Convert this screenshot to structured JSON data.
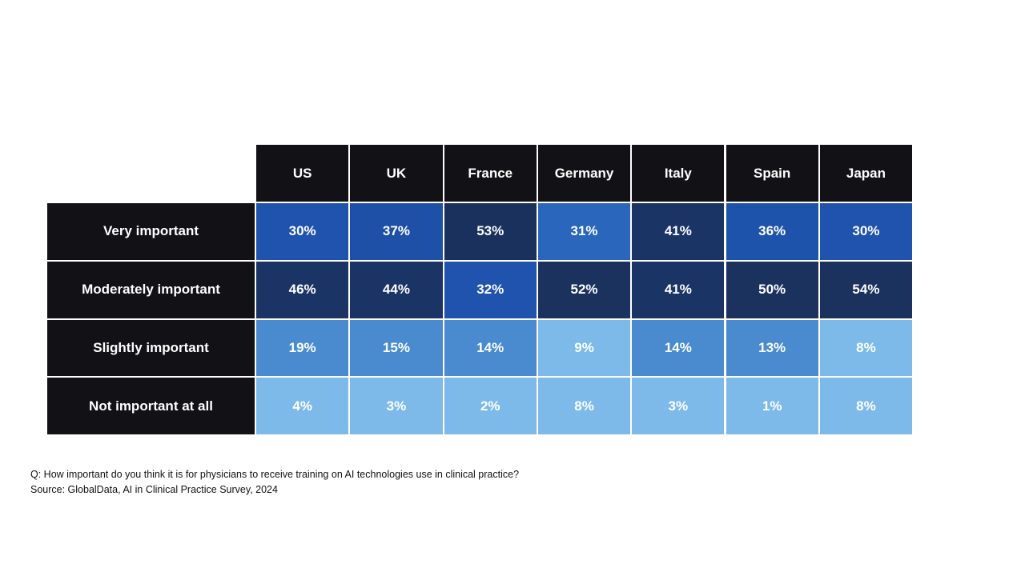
{
  "chart_data": {
    "type": "table",
    "columns": [
      "US",
      "UK",
      "France",
      "Germany",
      "Italy",
      "Spain",
      "Japan"
    ],
    "rows": [
      {
        "label": "Very important",
        "values": [
          "30%",
          "37%",
          "53%",
          "31%",
          "41%",
          "36%",
          "30%"
        ],
        "colors": [
          "#1f53ad",
          "#1e50a8",
          "#1b315d",
          "#2a66bb",
          "#1a3466",
          "#1e53ac",
          "#1f53ad"
        ]
      },
      {
        "label": "Moderately important",
        "values": [
          "46%",
          "44%",
          "32%",
          "52%",
          "41%",
          "50%",
          "54%"
        ],
        "colors": [
          "#1b3466",
          "#1b3466",
          "#1f53ad",
          "#1b315e",
          "#1b3466",
          "#1b315e",
          "#1b315e"
        ]
      },
      {
        "label": "Slightly important",
        "values": [
          "19%",
          "15%",
          "14%",
          "9%",
          "14%",
          "13%",
          "8%"
        ],
        "colors": [
          "#4a8bcf",
          "#4a8bcf",
          "#4a8bcf",
          "#7dbaea",
          "#4a8bcf",
          "#4a8bcf",
          "#7dbaea"
        ]
      },
      {
        "label": "Not important at all",
        "values": [
          "4%",
          "3%",
          "2%",
          "8%",
          "3%",
          "1%",
          "8%"
        ],
        "colors": [
          "#7dbaea",
          "#7dbaea",
          "#7dbaea",
          "#7dbaea",
          "#7dbaea",
          "#7dbaea",
          "#7dbaea"
        ]
      }
    ]
  },
  "footnote": {
    "question": "Q: How important do you think it is for physicians to receive training on AI technologies use in clinical practice?",
    "source": "Source: GlobalData, AI in Clinical Practice Survey, 2024"
  }
}
